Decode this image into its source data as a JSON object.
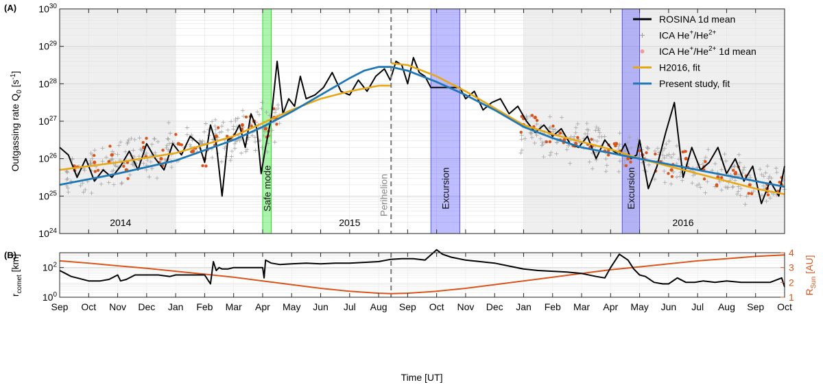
{
  "chart_data": [
    {
      "panel": "(A)",
      "type": "line",
      "ylabel": "Outgassing rate Q",
      "ylabel_sub": "0",
      "ylabel_unit_pre": " [s",
      "ylabel_unit_sup": "-1",
      "ylabel_unit_post": "]",
      "yscale": "log",
      "ylim_exp": [
        24,
        30
      ],
      "ytick_exponents": [
        24,
        25,
        26,
        27,
        28,
        29,
        30
      ],
      "xlim_months": [
        0,
        25
      ],
      "shaded_year_regions": [
        [
          0,
          4
        ],
        [
          16,
          25
        ]
      ],
      "year_labels": [
        {
          "text": "2014",
          "month": 2.1
        },
        {
          "text": "2015",
          "month": 10.0
        },
        {
          "text": "2016",
          "month": 21.5
        }
      ],
      "event_bands": [
        {
          "label": "Safe mode",
          "start": 7.0,
          "end": 7.3,
          "color": "#00dd00"
        },
        {
          "label": "Excursion",
          "start": 12.8,
          "end": 13.8,
          "color": "#3333ff"
        },
        {
          "label": "Excursion",
          "start": 19.4,
          "end": 20.0,
          "color": "#3333ff"
        }
      ],
      "perihelion": {
        "label": "Perihelion",
        "month": 11.43
      },
      "legend": [
        {
          "label": "ROSINA 1d mean",
          "color": "#000000",
          "marker": "line"
        },
        {
          "label": "ICA He",
          "sup1": "+",
          "mid": "/He",
          "sup2": "2+",
          "post": "",
          "color": "#9a9a9a",
          "marker": "plus"
        },
        {
          "label": "ICA He",
          "sup1": "+",
          "mid": "/He",
          "sup2": "2+",
          "post": " 1d mean",
          "color": "#e8a090",
          "marker": "dot"
        },
        {
          "label": "H2016, fit",
          "color": "#e6a817",
          "marker": "line"
        },
        {
          "label": "Present study, fit",
          "color": "#1f77b4",
          "marker": "line"
        }
      ],
      "series": [
        {
          "name": "Present study, fit",
          "color": "#1f77b4",
          "month": [
            0,
            2,
            4,
            6,
            7,
            8,
            9,
            10,
            10.5,
            11,
            11.43,
            12,
            13,
            14,
            15,
            16,
            17,
            18,
            19,
            20,
            21,
            22,
            23,
            24,
            25
          ],
          "log10_Q": [
            25.3,
            25.6,
            25.95,
            26.5,
            26.85,
            27.25,
            27.7,
            28.15,
            28.35,
            28.45,
            28.45,
            28.35,
            28.05,
            27.7,
            27.3,
            26.85,
            26.55,
            26.3,
            26.15,
            26.0,
            25.85,
            25.7,
            25.55,
            25.4,
            25.25
          ]
        },
        {
          "name": "H2016, fit (pre-perihelion)",
          "color": "#e6a817",
          "month": [
            0,
            2,
            4,
            6,
            7,
            8,
            9,
            10,
            11,
            11.43
          ],
          "log10_Q": [
            25.7,
            25.9,
            26.15,
            26.6,
            26.95,
            27.3,
            27.6,
            27.8,
            27.95,
            27.95
          ]
        },
        {
          "name": "H2016, fit (post-perihelion)",
          "color": "#e6a817",
          "month": [
            11.43,
            12,
            13,
            14,
            15,
            16,
            17,
            18,
            19,
            20,
            21,
            22,
            23,
            24,
            25
          ],
          "log10_Q": [
            28.55,
            28.5,
            28.2,
            27.8,
            27.35,
            26.9,
            26.65,
            26.45,
            26.25,
            26.0,
            25.8,
            25.6,
            25.4,
            25.2,
            25.05
          ]
        },
        {
          "name": "ROSINA 1d mean",
          "color": "#000000",
          "month": [
            0,
            0.3,
            0.6,
            0.9,
            1.2,
            1.5,
            1.8,
            2.1,
            2.4,
            2.7,
            3.0,
            3.3,
            3.6,
            3.9,
            4.2,
            4.5,
            4.8,
            5.0,
            5.2,
            5.4,
            5.6,
            5.8,
            6.0,
            6.2,
            6.4,
            6.6,
            6.8,
            6.95,
            7.1,
            7.3,
            7.5,
            7.7,
            7.9,
            8.1,
            8.3,
            8.5,
            8.8,
            9.1,
            9.4,
            9.7,
            10.0,
            10.3,
            10.6,
            10.9,
            11.2,
            11.4,
            11.6,
            11.8,
            12.0,
            12.2,
            12.4,
            12.6,
            12.8,
            13.8,
            14.0,
            14.3,
            14.6,
            14.9,
            15.2,
            15.5,
            15.8,
            16.1,
            16.4,
            16.7,
            17.0,
            17.3,
            17.6,
            17.9,
            18.2,
            18.5,
            18.8,
            19.1,
            19.3,
            19.5,
            19.7,
            19.9,
            20.0,
            20.3,
            20.6,
            20.9,
            21.2,
            21.5,
            21.8,
            22.1,
            22.4,
            22.7,
            23.0,
            23.3,
            23.6,
            23.9,
            24.2,
            24.5,
            24.8,
            25.0
          ],
          "log10_Q": [
            26.3,
            26.1,
            25.5,
            26.0,
            25.4,
            25.7,
            25.5,
            25.8,
            26.2,
            25.7,
            26.4,
            26.0,
            25.7,
            26.4,
            26.1,
            26.6,
            26.4,
            25.9,
            26.9,
            26.4,
            25.0,
            26.5,
            26.6,
            26.9,
            26.3,
            27.2,
            26.8,
            25.6,
            26.3,
            27.1,
            28.6,
            27.2,
            27.6,
            27.4,
            28.2,
            27.6,
            27.7,
            27.9,
            28.3,
            27.8,
            27.7,
            28.1,
            27.8,
            28.2,
            28.4,
            28.1,
            28.6,
            28.5,
            28.0,
            28.7,
            28.3,
            28.2,
            27.9,
            27.9,
            27.6,
            27.8,
            27.3,
            27.5,
            27.6,
            27.2,
            27.4,
            27.0,
            26.7,
            26.9,
            26.6,
            26.8,
            26.4,
            26.3,
            26.6,
            26.0,
            26.5,
            26.2,
            26.1,
            26.4,
            26.0,
            26.1,
            26.5,
            25.2,
            25.8,
            26.7,
            27.5,
            25.5,
            26.3,
            25.7,
            25.9,
            26.3,
            25.6,
            26.0,
            25.4,
            25.8,
            24.8,
            25.4,
            25.0,
            25.8
          ]
        },
        {
          "name": "ICA He+/He2+ 1d mean",
          "color": "#d9541a",
          "month": [
            0.5,
            1.2,
            1.8,
            2.3,
            2.9,
            3.5,
            4.1,
            4.6,
            5.0,
            5.4,
            5.9,
            6.3,
            6.7,
            7.1,
            7.4,
            16.0,
            16.4,
            16.9,
            17.4,
            17.8,
            18.3,
            18.8,
            19.2,
            19.6,
            20.1,
            20.6,
            21.1,
            21.6,
            22.2,
            22.7,
            23.3,
            23.8,
            24.4,
            24.9
          ],
          "log10_Q": [
            25.8,
            25.9,
            26.1,
            25.7,
            26.3,
            26.0,
            26.4,
            26.2,
            26.0,
            26.6,
            26.5,
            26.9,
            27.0,
            26.8,
            27.1,
            26.9,
            27.1,
            26.7,
            26.5,
            26.4,
            26.3,
            26.2,
            26.4,
            26.0,
            26.1,
            25.9,
            25.7,
            26.0,
            25.7,
            25.5,
            25.6,
            25.3,
            25.2,
            25.3
          ]
        }
      ],
      "ica_scatter_bands": [
        {
          "start": 0.2,
          "end": 7.6,
          "log10_center_start": 25.6,
          "log10_center_end": 26.9,
          "spread": 0.55
        },
        {
          "start": 15.9,
          "end": 25.0,
          "log10_center_start": 26.8,
          "log10_center_end": 25.2,
          "spread": 0.5
        }
      ]
    },
    {
      "panel": "(B)",
      "type": "line",
      "ylabel": "r",
      "ylabel_sub": "comet",
      "ylabel_unit": " [km]",
      "yscale": "log",
      "ylim_exp": [
        0,
        3
      ],
      "ytick_exponents": [
        0,
        2
      ],
      "ylabel_right": "R",
      "ylabel_right_sub": "Sun",
      "ylabel_right_unit": " [AU]",
      "ylim_right": [
        1,
        4
      ],
      "yticks_right": [
        1,
        2,
        3,
        4
      ],
      "xlabel": "Time [UT]",
      "xtick_labels": [
        "Sep",
        "Oct",
        "Nov",
        "Dec",
        "Jan",
        "Feb",
        "Mar",
        "Apr",
        "May",
        "Jun",
        "Jul",
        "Aug",
        "Sep",
        "Oct",
        "Nov",
        "Dec",
        "Jan",
        "Feb",
        "Mar",
        "Apr",
        "May",
        "Jun",
        "Jul",
        "Aug",
        "Sep",
        "Oct"
      ],
      "series": [
        {
          "name": "r_comet",
          "color": "#000000",
          "month": [
            0,
            0.2,
            0.4,
            0.6,
            1.0,
            1.4,
            1.7,
            2.0,
            2.1,
            2.3,
            2.6,
            3.0,
            3.4,
            3.8,
            4.0,
            4.3,
            4.6,
            5.0,
            5.2,
            5.3,
            5.4,
            5.5,
            5.6,
            5.8,
            6.0,
            6.5,
            7.0,
            7.05,
            7.1,
            7.3,
            7.6,
            8.0,
            8.5,
            9.0,
            9.5,
            10.0,
            10.5,
            11.0,
            11.4,
            11.8,
            12.2,
            12.6,
            13.0,
            13.2,
            13.5,
            14.0,
            14.5,
            15.0,
            15.5,
            16.0,
            16.5,
            17.0,
            17.5,
            18.0,
            18.5,
            18.8,
            19.0,
            19.3,
            19.6,
            19.8,
            20.0,
            20.2,
            20.5,
            20.8,
            21.0,
            21.3,
            21.6,
            21.9,
            22.2,
            22.6,
            23.0,
            23.5,
            24.0,
            24.5,
            24.9,
            25.0
          ],
          "log10_r": [
            1.8,
            1.6,
            1.4,
            1.3,
            1.1,
            1.1,
            1.2,
            1.5,
            1.1,
            1.2,
            1.5,
            1.5,
            1.5,
            1.4,
            1.5,
            1.5,
            1.5,
            1.5,
            0.9,
            2.4,
            1.8,
            2.0,
            1.9,
            1.9,
            2.0,
            2.0,
            2.0,
            1.3,
            2.5,
            2.3,
            2.2,
            2.25,
            2.3,
            2.25,
            2.3,
            2.3,
            2.35,
            2.4,
            2.55,
            2.6,
            2.6,
            2.5,
            3.2,
            2.9,
            2.7,
            2.5,
            2.4,
            2.3,
            2.1,
            1.9,
            1.8,
            1.75,
            1.7,
            1.6,
            1.4,
            1.3,
            2.0,
            2.9,
            2.5,
            1.9,
            1.5,
            1.4,
            1.0,
            0.9,
            0.9,
            1.3,
            1.0,
            1.0,
            1.1,
            1.0,
            1.1,
            1.0,
            1.0,
            1.0,
            1.3,
            0.7
          ]
        },
        {
          "name": "R_Sun",
          "color": "#d9541a",
          "axis": "right",
          "month": [
            0,
            1,
            2,
            3,
            4,
            5,
            6,
            7,
            8,
            9,
            10,
            11,
            11.43,
            12,
            13,
            14,
            15,
            16,
            17,
            18,
            19,
            20,
            21,
            22,
            23,
            24,
            25
          ],
          "values_AU": [
            3.45,
            3.3,
            3.12,
            2.95,
            2.75,
            2.55,
            2.35,
            2.1,
            1.85,
            1.6,
            1.4,
            1.27,
            1.24,
            1.27,
            1.4,
            1.6,
            1.85,
            2.1,
            2.35,
            2.6,
            2.85,
            3.05,
            3.25,
            3.45,
            3.6,
            3.75,
            3.85
          ]
        }
      ]
    }
  ]
}
